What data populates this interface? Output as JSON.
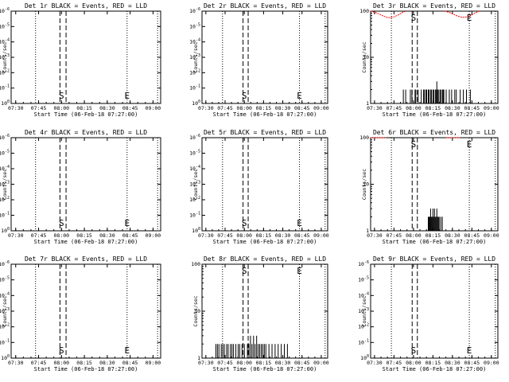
{
  "colors": {
    "events": "#000000",
    "lld": "#ff0000",
    "background": "#ffffff"
  },
  "chart_data": [
    {
      "type": "line",
      "title": "Det 1r BLACK = Events, RED = LLD",
      "xlabel": "Start Time (06-Feb-18 07:27:00)",
      "ylabel": "Counts/sec",
      "x_ticks": [
        "07:30",
        "07:45",
        "08:00",
        "08:15",
        "08:30",
        "08:45",
        "09:00"
      ],
      "x_range": [
        "07:27",
        "09:05"
      ],
      "y_scale": "log",
      "y_range": [
        1,
        100
      ],
      "y_ticks": [
        "10^0",
        "10^-1",
        "10^-2",
        "10^-3",
        "10^-4",
        "10^-5",
        "10^-6"
      ],
      "markers": [
        {
          "label": "S",
          "time": "08:00"
        },
        {
          "label": "E",
          "time": "08:43"
        }
      ],
      "dotted_times": [
        "07:43",
        "08:43",
        "09:03"
      ],
      "dashed_times": [
        "07:59",
        "08:03"
      ],
      "events": [],
      "lld": []
    },
    {
      "type": "line",
      "title": "Det 2r BLACK = Events, RED = LLD",
      "xlabel": "Start Time (06-Feb-18 07:27:00)",
      "ylabel": "Counts/sec",
      "x_ticks": [
        "07:30",
        "07:45",
        "08:00",
        "08:15",
        "08:30",
        "08:45",
        "09:00"
      ],
      "x_range": [
        "07:27",
        "09:05"
      ],
      "y_scale": "log",
      "y_range": [
        1,
        100
      ],
      "y_ticks": [
        "10^0",
        "10^-1",
        "10^-2",
        "10^-3",
        "10^-4",
        "10^-5",
        "10^-6"
      ],
      "markers": [
        {
          "label": "S",
          "time": "08:00"
        },
        {
          "label": "E",
          "time": "08:43"
        }
      ],
      "dotted_times": [
        "07:43",
        "08:43",
        "09:03"
      ],
      "dashed_times": [
        "07:59",
        "08:03"
      ],
      "events": [],
      "lld": []
    },
    {
      "type": "line",
      "title": "Det 3r BLACK = Events, RED = LLD",
      "xlabel": "Start Time (06-Feb-18 07:27:00)",
      "ylabel": "Counts/sec",
      "x_ticks": [
        "07:30",
        "07:45",
        "08:00",
        "08:15",
        "08:30",
        "08:45",
        "09:00"
      ],
      "x_range": [
        "07:27",
        "09:05"
      ],
      "y_scale": "log",
      "y_range": [
        1,
        100
      ],
      "y_ticks": [
        "100",
        "10",
        "1"
      ],
      "markers": [
        {
          "label": "S",
          "time": "08:00"
        },
        {
          "label": "E",
          "time": "08:43"
        }
      ],
      "dotted_times": [
        "07:43",
        "08:43",
        "09:03"
      ],
      "dashed_times": [
        "07:59",
        "08:03"
      ],
      "events": [
        [
          7.86,
          1
        ],
        [
          7.87,
          2
        ],
        [
          7.89,
          1
        ],
        [
          7.9,
          2
        ],
        [
          7.91,
          1
        ],
        [
          7.96,
          2
        ],
        [
          7.97,
          1
        ],
        [
          7.98,
          2
        ],
        [
          7.99,
          1
        ],
        [
          8.01,
          1
        ],
        [
          8.02,
          2
        ],
        [
          8.03,
          2
        ],
        [
          8.04,
          1
        ],
        [
          8.05,
          1
        ],
        [
          8.06,
          2
        ],
        [
          8.07,
          1
        ],
        [
          8.08,
          1
        ],
        [
          8.1,
          2
        ],
        [
          8.12,
          1
        ],
        [
          8.13,
          2
        ],
        [
          8.14,
          2
        ],
        [
          8.15,
          1
        ],
        [
          8.16,
          2
        ],
        [
          8.17,
          2
        ],
        [
          8.18,
          1
        ],
        [
          8.19,
          2
        ],
        [
          8.2,
          2
        ],
        [
          8.21,
          1
        ],
        [
          8.22,
          2
        ],
        [
          8.23,
          2
        ],
        [
          8.24,
          1
        ],
        [
          8.25,
          2
        ],
        [
          8.26,
          2
        ],
        [
          8.27,
          1
        ],
        [
          8.28,
          2
        ],
        [
          8.29,
          2
        ],
        [
          8.3,
          3
        ],
        [
          8.31,
          2
        ],
        [
          8.32,
          2
        ],
        [
          8.33,
          1
        ],
        [
          8.34,
          2
        ],
        [
          8.35,
          2
        ],
        [
          8.36,
          1
        ],
        [
          8.37,
          2
        ],
        [
          8.38,
          2
        ],
        [
          8.39,
          2
        ],
        [
          8.4,
          1
        ],
        [
          8.42,
          2
        ],
        [
          8.43,
          1
        ],
        [
          8.44,
          1
        ],
        [
          8.46,
          2
        ],
        [
          8.47,
          1
        ],
        [
          8.49,
          2
        ],
        [
          8.5,
          1
        ],
        [
          8.52,
          1
        ],
        [
          8.53,
          2
        ],
        [
          8.54,
          1
        ],
        [
          8.55,
          2
        ],
        [
          8.58,
          1
        ],
        [
          8.6,
          2
        ],
        [
          8.61,
          1
        ],
        [
          8.63,
          1
        ],
        [
          8.64,
          2
        ],
        [
          8.65,
          1
        ],
        [
          8.66,
          1
        ],
        [
          8.68,
          2
        ],
        [
          8.69,
          1
        ],
        [
          8.72,
          1
        ],
        [
          8.73,
          2
        ],
        [
          8.74,
          1
        ],
        [
          8.75,
          1
        ],
        [
          8.76,
          1
        ],
        [
          8.77,
          1
        ],
        [
          8.8,
          1
        ],
        [
          8.81,
          1
        ],
        [
          8.82,
          1
        ],
        [
          8.86,
          1
        ],
        [
          8.87,
          1
        ],
        [
          8.89,
          1
        ],
        [
          8.9,
          1
        ],
        [
          8.92,
          1
        ]
      ],
      "lld": [
        [
          7.45,
          100
        ],
        [
          7.5,
          95
        ],
        [
          7.55,
          88
        ],
        [
          7.6,
          80
        ],
        [
          7.65,
          74
        ],
        [
          7.7,
          72
        ],
        [
          7.75,
          75
        ],
        [
          7.8,
          82
        ],
        [
          7.85,
          92
        ],
        [
          7.9,
          100
        ],
        [
          8.4,
          100
        ],
        [
          8.45,
          95
        ],
        [
          8.5,
          88
        ],
        [
          8.55,
          80
        ],
        [
          8.6,
          75
        ],
        [
          8.65,
          73
        ],
        [
          8.7,
          76
        ],
        [
          8.75,
          83
        ],
        [
          8.8,
          93
        ],
        [
          8.85,
          100
        ]
      ]
    },
    {
      "type": "line",
      "title": "Det 4r BLACK = Events, RED = LLD",
      "xlabel": "Start Time (06-Feb-18 07:27:00)",
      "ylabel": "Counts/sec",
      "x_ticks": [
        "07:30",
        "07:45",
        "08:00",
        "08:15",
        "08:30",
        "08:45",
        "09:00"
      ],
      "x_range": [
        "07:27",
        "09:05"
      ],
      "y_scale": "log",
      "y_range": [
        1,
        100
      ],
      "y_ticks": [
        "10^0",
        "10^-1",
        "10^-2",
        "10^-3",
        "10^-4",
        "10^-5",
        "10^-6"
      ],
      "markers": [
        {
          "label": "S",
          "time": "08:00"
        },
        {
          "label": "E",
          "time": "08:43"
        }
      ],
      "dotted_times": [
        "07:43",
        "08:43",
        "09:03"
      ],
      "dashed_times": [
        "07:59",
        "08:03"
      ],
      "events": [],
      "lld": []
    },
    {
      "type": "line",
      "title": "Det 5r BLACK = Events, RED = LLD",
      "xlabel": "Start Time (06-Feb-18 07:27:00)",
      "ylabel": "Counts/sec",
      "x_ticks": [
        "07:30",
        "07:45",
        "08:00",
        "08:15",
        "08:30",
        "08:45",
        "09:00"
      ],
      "x_range": [
        "07:27",
        "09:05"
      ],
      "y_scale": "log",
      "y_range": [
        1,
        100
      ],
      "y_ticks": [
        "10^0",
        "10^-1",
        "10^-2",
        "10^-3",
        "10^-4",
        "10^-5",
        "10^-6"
      ],
      "markers": [
        {
          "label": "S",
          "time": "08:00"
        },
        {
          "label": "E",
          "time": "08:43"
        }
      ],
      "dotted_times": [
        "07:43",
        "08:43",
        "09:03"
      ],
      "dashed_times": [
        "07:59",
        "08:03"
      ],
      "events": [],
      "lld": []
    },
    {
      "type": "line",
      "title": "Det 6r BLACK = Events, RED = LLD",
      "xlabel": "Start Time (06-Feb-18 07:27:00)",
      "ylabel": "Counts/sec",
      "x_ticks": [
        "07:30",
        "07:45",
        "08:00",
        "08:15",
        "08:30",
        "08:45",
        "09:00"
      ],
      "x_range": [
        "07:27",
        "09:05"
      ],
      "y_scale": "log",
      "y_range": [
        1,
        100
      ],
      "y_ticks": [
        "100",
        "10",
        "1"
      ],
      "markers": [
        {
          "label": "S",
          "time": "08:00"
        },
        {
          "label": "E",
          "time": "08:43"
        }
      ],
      "dotted_times": [
        "07:43",
        "08:43",
        "09:03"
      ],
      "dashed_times": [
        "07:59",
        "08:03"
      ],
      "events": [
        [
          8.18,
          1
        ],
        [
          8.19,
          2
        ],
        [
          8.2,
          2
        ],
        [
          8.21,
          2
        ],
        [
          8.22,
          3
        ],
        [
          8.23,
          2
        ],
        [
          8.24,
          2
        ],
        [
          8.25,
          3
        ],
        [
          8.26,
          2
        ],
        [
          8.27,
          3
        ],
        [
          8.28,
          2
        ],
        [
          8.29,
          2
        ],
        [
          8.3,
          3
        ],
        [
          8.31,
          2
        ],
        [
          8.32,
          2
        ],
        [
          8.33,
          2
        ],
        [
          8.34,
          1
        ],
        [
          8.35,
          2
        ],
        [
          8.36,
          1
        ],
        [
          8.37,
          2
        ],
        [
          8.38,
          1
        ]
      ],
      "lld": [
        [
          7.45,
          100
        ],
        [
          7.55,
          100
        ],
        [
          7.65,
          100
        ],
        [
          8.42,
          100
        ],
        [
          8.5,
          100
        ],
        [
          8.6,
          100
        ]
      ]
    },
    {
      "type": "line",
      "title": "Det 7r BLACK = Events, RED = LLD",
      "xlabel": "Start Time (06-Feb-18 07:27:00)",
      "ylabel": "Counts/sec",
      "x_ticks": [
        "07:30",
        "07:45",
        "08:00",
        "08:15",
        "08:30",
        "08:45",
        "09:00"
      ],
      "x_range": [
        "07:27",
        "09:05"
      ],
      "y_scale": "log",
      "y_range": [
        1,
        100
      ],
      "y_ticks": [
        "10^0",
        "10^-1",
        "10^-2",
        "10^-3",
        "10^-4",
        "10^-5",
        "10^-6"
      ],
      "markers": [
        {
          "label": "S",
          "time": "08:00"
        },
        {
          "label": "E",
          "time": "08:43"
        }
      ],
      "dotted_times": [
        "07:43",
        "08:43",
        "09:03"
      ],
      "dashed_times": [
        "07:59",
        "08:03"
      ],
      "events": [],
      "lld": []
    },
    {
      "type": "line",
      "title": "Det 8r BLACK = Events, RED = LLD",
      "xlabel": "Start Time (06-Feb-18 07:27:00)",
      "ylabel": "Counts/sec",
      "x_ticks": [
        "07:30",
        "07:45",
        "08:00",
        "08:15",
        "08:30",
        "08:45",
        "09:00"
      ],
      "x_range": [
        "07:27",
        "09:05"
      ],
      "y_scale": "log",
      "y_range": [
        1,
        100
      ],
      "y_ticks": [
        "100",
        "10",
        "1"
      ],
      "markers": [
        {
          "label": "S",
          "time": "08:00"
        },
        {
          "label": "E",
          "time": "08:43"
        }
      ],
      "dotted_times": [
        "07:43",
        "08:43",
        "09:03"
      ],
      "dashed_times": [
        "07:59",
        "08:03"
      ],
      "events": [
        [
          7.62,
          1
        ],
        [
          7.63,
          2
        ],
        [
          7.64,
          1
        ],
        [
          7.65,
          2
        ],
        [
          7.66,
          1
        ],
        [
          7.67,
          2
        ],
        [
          7.68,
          1
        ],
        [
          7.7,
          2
        ],
        [
          7.71,
          1
        ],
        [
          7.72,
          2
        ],
        [
          7.73,
          1
        ],
        [
          7.74,
          2
        ],
        [
          7.75,
          1
        ],
        [
          7.77,
          2
        ],
        [
          7.78,
          1
        ],
        [
          7.79,
          2
        ],
        [
          7.8,
          1
        ],
        [
          7.82,
          2
        ],
        [
          7.83,
          1
        ],
        [
          7.84,
          2
        ],
        [
          7.85,
          1
        ],
        [
          7.86,
          2
        ],
        [
          7.88,
          1
        ],
        [
          7.89,
          2
        ],
        [
          7.9,
          1
        ],
        [
          7.92,
          2
        ],
        [
          7.93,
          1
        ],
        [
          7.94,
          2
        ],
        [
          7.96,
          1
        ],
        [
          7.97,
          2
        ],
        [
          7.98,
          1
        ],
        [
          8.0,
          2
        ],
        [
          8.02,
          1
        ],
        [
          8.04,
          2
        ],
        [
          8.06,
          2
        ],
        [
          8.08,
          3
        ],
        [
          8.1,
          2
        ],
        [
          8.12,
          3
        ],
        [
          8.14,
          2
        ],
        [
          8.16,
          3
        ],
        [
          8.18,
          2
        ],
        [
          8.2,
          2
        ],
        [
          8.22,
          2
        ],
        [
          8.24,
          2
        ],
        [
          8.26,
          2
        ],
        [
          8.28,
          2
        ],
        [
          8.3,
          1
        ],
        [
          8.32,
          2
        ],
        [
          8.34,
          1
        ],
        [
          8.36,
          2
        ],
        [
          8.38,
          1
        ],
        [
          8.4,
          2
        ],
        [
          8.42,
          1
        ],
        [
          8.44,
          2
        ],
        [
          8.46,
          1
        ],
        [
          8.48,
          2
        ],
        [
          8.5,
          1
        ],
        [
          8.52,
          2
        ],
        [
          8.54,
          1
        ],
        [
          8.56,
          2
        ],
        [
          8.58,
          1
        ]
      ],
      "lld": []
    },
    {
      "type": "line",
      "title": "Det 9r BLACK = Events, RED = LLD",
      "xlabel": "Start Time (06-Feb-18 07:27:00)",
      "ylabel": "Counts/sec",
      "x_ticks": [
        "07:30",
        "07:45",
        "08:00",
        "08:15",
        "08:30",
        "08:45",
        "09:00"
      ],
      "x_range": [
        "07:27",
        "09:05"
      ],
      "y_scale": "log",
      "y_range": [
        1,
        100
      ],
      "y_ticks": [
        "10^0",
        "10^-1",
        "10^-2",
        "10^-3",
        "10^-4",
        "10^-5",
        "10^-6"
      ],
      "markers": [
        {
          "label": "S",
          "time": "08:00"
        },
        {
          "label": "E",
          "time": "08:43"
        }
      ],
      "dotted_times": [
        "07:43",
        "08:43",
        "09:03"
      ],
      "dashed_times": [
        "07:59",
        "08:03"
      ],
      "events": [],
      "lld": []
    }
  ]
}
